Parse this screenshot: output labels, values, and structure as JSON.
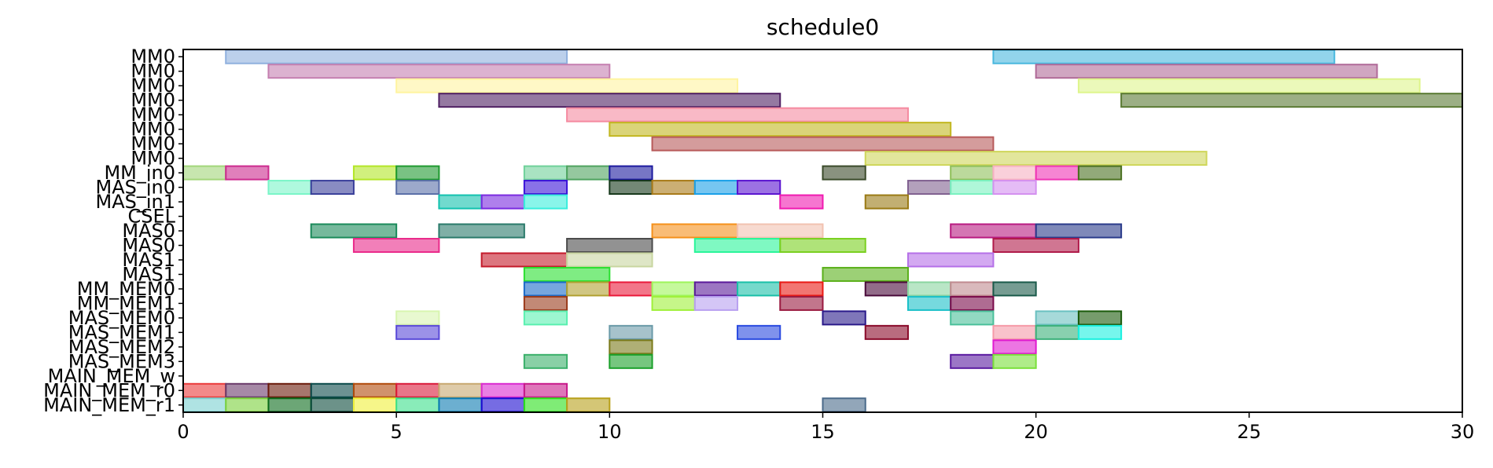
{
  "chart_data": {
    "type": "gantt",
    "title": "schedule0",
    "xlim": [
      0,
      30
    ],
    "xticks": [
      "0",
      "5",
      "10",
      "15",
      "20",
      "25",
      "30"
    ],
    "xtick_values": [
      0,
      5,
      10,
      15,
      20,
      25,
      30
    ],
    "grid": false,
    "rows": [
      "MM0",
      "MM0",
      "MM0",
      "MM0",
      "MM0",
      "MM0",
      "MM0",
      "MM0",
      "MM_in0",
      "MAS_in0",
      "MAS_in1",
      "CSEL",
      "MAS0",
      "MAS0",
      "MAS1",
      "MAS1",
      "MM_MEM0",
      "MM_MEM1",
      "MAS_MEM0",
      "MAS_MEM1",
      "MAS_MEM2",
      "MAS_MEM3",
      "MAIN_MEM_w",
      "MAIN_MEM_r0",
      "MAIN_MEM_r1"
    ],
    "tasks": [
      {
        "row": 0,
        "start": 1,
        "end": 9,
        "color": "#8fb0de"
      },
      {
        "row": 0,
        "start": 19,
        "end": 27,
        "color": "#49b8de"
      },
      {
        "row": 1,
        "start": 2,
        "end": 10,
        "color": "#c57fb0"
      },
      {
        "row": 1,
        "start": 20,
        "end": 28,
        "color": "#b06a98"
      },
      {
        "row": 2,
        "start": 5,
        "end": 13,
        "color": "#fff4a0"
      },
      {
        "row": 2,
        "start": 21,
        "end": 29,
        "color": "#def58c"
      },
      {
        "row": 3,
        "start": 6,
        "end": 14,
        "color": "#4f2063"
      },
      {
        "row": 3,
        "start": 22,
        "end": 30,
        "color": "#5a7a33"
      },
      {
        "row": 4,
        "start": 9,
        "end": 17,
        "color": "#f58aa0"
      },
      {
        "row": 5,
        "start": 10,
        "end": 18,
        "color": "#c2b720"
      },
      {
        "row": 6,
        "start": 11,
        "end": 19,
        "color": "#b75a5a"
      },
      {
        "row": 7,
        "start": 16,
        "end": 24,
        "color": "#cfd65a"
      },
      {
        "row": 8,
        "start": 0,
        "end": 1,
        "color": "#a2d67a"
      },
      {
        "row": 8,
        "start": 1,
        "end": 2,
        "color": "#cc2a8e"
      },
      {
        "row": 8,
        "start": 4,
        "end": 5,
        "color": "#b3e627"
      },
      {
        "row": 8,
        "start": 5,
        "end": 6,
        "color": "#1f9a30"
      },
      {
        "row": 8,
        "start": 8,
        "end": 9,
        "color": "#6fd19a"
      },
      {
        "row": 8,
        "start": 9,
        "end": 10,
        "color": "#4fa35f"
      },
      {
        "row": 8,
        "start": 10,
        "end": 11,
        "color": "#1d1a9e"
      },
      {
        "row": 8,
        "start": 15,
        "end": 16,
        "color": "#3a4a2a"
      },
      {
        "row": 8,
        "start": 18,
        "end": 19,
        "color": "#8fc05a"
      },
      {
        "row": 8,
        "start": 19,
        "end": 20,
        "color": "#f7b0c2"
      },
      {
        "row": 8,
        "start": 20,
        "end": 21,
        "color": "#f033b5"
      },
      {
        "row": 8,
        "start": 21,
        "end": 22,
        "color": "#4a7020"
      },
      {
        "row": 9,
        "start": 2,
        "end": 3,
        "color": "#7af5c8"
      },
      {
        "row": 9,
        "start": 3,
        "end": 4,
        "color": "#3a3f9a"
      },
      {
        "row": 9,
        "start": 5,
        "end": 6,
        "color": "#5a6fa8"
      },
      {
        "row": 9,
        "start": 8,
        "end": 9,
        "color": "#3a12d9"
      },
      {
        "row": 9,
        "start": 10,
        "end": 11,
        "color": "#16381b"
      },
      {
        "row": 9,
        "start": 11,
        "end": 12,
        "color": "#a87a18"
      },
      {
        "row": 9,
        "start": 12,
        "end": 13,
        "color": "#1aa0e8"
      },
      {
        "row": 9,
        "start": 13,
        "end": 14,
        "color": "#5a14d0"
      },
      {
        "row": 9,
        "start": 17,
        "end": 18,
        "color": "#806090"
      },
      {
        "row": 9,
        "start": 18,
        "end": 19,
        "color": "#7af2c0"
      },
      {
        "row": 9,
        "start": 19,
        "end": 20,
        "color": "#d490f0"
      },
      {
        "row": 10,
        "start": 6,
        "end": 7,
        "color": "#12c2ae"
      },
      {
        "row": 10,
        "start": 7,
        "end": 8,
        "color": "#7a2ae0"
      },
      {
        "row": 10,
        "start": 8,
        "end": 9,
        "color": "#3aeedc"
      },
      {
        "row": 10,
        "start": 14,
        "end": 15,
        "color": "#f01ab0"
      },
      {
        "row": 10,
        "start": 16,
        "end": 17,
        "color": "#9a7a14"
      },
      {
        "row": 12,
        "start": 3,
        "end": 5,
        "color": "#1a8a5a"
      },
      {
        "row": 12,
        "start": 6,
        "end": 8,
        "color": "#2a7a6a"
      },
      {
        "row": 12,
        "start": 11,
        "end": 13,
        "color": "#f5901a"
      },
      {
        "row": 12,
        "start": 13,
        "end": 15,
        "color": "#f2c2b0"
      },
      {
        "row": 12,
        "start": 18,
        "end": 20,
        "color": "#b81a80"
      },
      {
        "row": 12,
        "start": 20,
        "end": 22,
        "color": "#2a3a8a"
      },
      {
        "row": 13,
        "start": 4,
        "end": 6,
        "color": "#ea2a8a"
      },
      {
        "row": 13,
        "start": 9,
        "end": 11,
        "color": "#4a4a4a"
      },
      {
        "row": 13,
        "start": 12,
        "end": 14,
        "color": "#2af59a"
      },
      {
        "row": 13,
        "start": 14,
        "end": 16,
        "color": "#7ad020"
      },
      {
        "row": 13,
        "start": 19,
        "end": 21,
        "color": "#b01a4a"
      },
      {
        "row": 14,
        "start": 7,
        "end": 9,
        "color": "#c41a2a"
      },
      {
        "row": 14,
        "start": 9,
        "end": 11,
        "color": "#c8d6a0"
      },
      {
        "row": 14,
        "start": 17,
        "end": 19,
        "color": "#b570e8"
      },
      {
        "row": 15,
        "start": 8,
        "end": 10,
        "color": "#2ae030"
      },
      {
        "row": 15,
        "start": 15,
        "end": 17,
        "color": "#5ab01a"
      },
      {
        "row": 16,
        "start": 8,
        "end": 9,
        "color": "#1a6ac8"
      },
      {
        "row": 16,
        "start": 9,
        "end": 10,
        "color": "#b0a030"
      },
      {
        "row": 16,
        "start": 10,
        "end": 11,
        "color": "#ea1a3a"
      },
      {
        "row": 16,
        "start": 11,
        "end": 12,
        "color": "#9ef55a"
      },
      {
        "row": 16,
        "start": 12,
        "end": 13,
        "color": "#5a1a9a"
      },
      {
        "row": 16,
        "start": 13,
        "end": 14,
        "color": "#1ac0a8"
      },
      {
        "row": 16,
        "start": 14,
        "end": 15,
        "color": "#ea1a14"
      },
      {
        "row": 16,
        "start": 16,
        "end": 17,
        "color": "#4a0a3a"
      },
      {
        "row": 16,
        "start": 17,
        "end": 18,
        "color": "#8ad5a0"
      },
      {
        "row": 16,
        "start": 18,
        "end": 19,
        "color": "#c08a90"
      },
      {
        "row": 16,
        "start": 19,
        "end": 20,
        "color": "#1a5a4a"
      },
      {
        "row": 17,
        "start": 8,
        "end": 9,
        "color": "#9a3a1a"
      },
      {
        "row": 17,
        "start": 11,
        "end": 12,
        "color": "#a0f03a"
      },
      {
        "row": 17,
        "start": 12,
        "end": 13,
        "color": "#b8a0f0"
      },
      {
        "row": 17,
        "start": 14,
        "end": 15,
        "color": "#9a1a40"
      },
      {
        "row": 17,
        "start": 17,
        "end": 18,
        "color": "#1ac0c8"
      },
      {
        "row": 17,
        "start": 18,
        "end": 19,
        "color": "#7a0a4a"
      },
      {
        "row": 18,
        "start": 5,
        "end": 6,
        "color": "#d8f5b0"
      },
      {
        "row": 18,
        "start": 8,
        "end": 9,
        "color": "#5af0b0"
      },
      {
        "row": 18,
        "start": 15,
        "end": 16,
        "color": "#2a1a8a"
      },
      {
        "row": 18,
        "start": 18,
        "end": 19,
        "color": "#4ac09a"
      },
      {
        "row": 18,
        "start": 20,
        "end": 21,
        "color": "#6ac0c0"
      },
      {
        "row": 18,
        "start": 21,
        "end": 22,
        "color": "#1a5a0a"
      },
      {
        "row": 19,
        "start": 5,
        "end": 6,
        "color": "#5a4ad8"
      },
      {
        "row": 19,
        "start": 10,
        "end": 11,
        "color": "#6a9aa8"
      },
      {
        "row": 19,
        "start": 13,
        "end": 14,
        "color": "#2a4ae0"
      },
      {
        "row": 19,
        "start": 16,
        "end": 17,
        "color": "#8a0a2a"
      },
      {
        "row": 19,
        "start": 19,
        "end": 20,
        "color": "#f59aa8"
      },
      {
        "row": 19,
        "start": 20,
        "end": 21,
        "color": "#3ab07a"
      },
      {
        "row": 19,
        "start": 21,
        "end": 22,
        "color": "#1af0e0"
      },
      {
        "row": 20,
        "start": 10,
        "end": 11,
        "color": "#7a7a1a"
      },
      {
        "row": 20,
        "start": 19,
        "end": 20,
        "color": "#e01ad0"
      },
      {
        "row": 21,
        "start": 8,
        "end": 9,
        "color": "#3ab06a"
      },
      {
        "row": 21,
        "start": 10,
        "end": 11,
        "color": "#1aa02a"
      },
      {
        "row": 21,
        "start": 18,
        "end": 19,
        "color": "#5a1aa0"
      },
      {
        "row": 21,
        "start": 19,
        "end": 20,
        "color": "#7ae03a"
      },
      {
        "row": 23,
        "start": 0,
        "end": 1,
        "color": "#ea3a3a"
      },
      {
        "row": 23,
        "start": 1,
        "end": 2,
        "color": "#6a3a6a"
      },
      {
        "row": 23,
        "start": 2,
        "end": 3,
        "color": "#6a1a0a"
      },
      {
        "row": 23,
        "start": 3,
        "end": 4,
        "color": "#0a4a4a"
      },
      {
        "row": 23,
        "start": 4,
        "end": 5,
        "color": "#b04a0a"
      },
      {
        "row": 23,
        "start": 5,
        "end": 6,
        "color": "#da1a3a"
      },
      {
        "row": 23,
        "start": 6,
        "end": 7,
        "color": "#c8a870"
      },
      {
        "row": 23,
        "start": 7,
        "end": 8,
        "color": "#da2ad0"
      },
      {
        "row": 23,
        "start": 8,
        "end": 9,
        "color": "#c81a8a"
      },
      {
        "row": 24,
        "start": 0,
        "end": 1,
        "color": "#7ad0d0"
      },
      {
        "row": 24,
        "start": 1,
        "end": 2,
        "color": "#7ad03a"
      },
      {
        "row": 24,
        "start": 2,
        "end": 3,
        "color": "#0a6a1a"
      },
      {
        "row": 24,
        "start": 3,
        "end": 4,
        "color": "#0a4a3a"
      },
      {
        "row": 24,
        "start": 4,
        "end": 5,
        "color": "#f0f03a"
      },
      {
        "row": 24,
        "start": 5,
        "end": 6,
        "color": "#3ae08a"
      },
      {
        "row": 24,
        "start": 6,
        "end": 7,
        "color": "#0a7ab0"
      },
      {
        "row": 24,
        "start": 7,
        "end": 8,
        "color": "#1a0ad0"
      },
      {
        "row": 24,
        "start": 8,
        "end": 9,
        "color": "#2ae01a"
      },
      {
        "row": 24,
        "start": 9,
        "end": 10,
        "color": "#b8a01a"
      },
      {
        "row": 24,
        "start": 15,
        "end": 16,
        "color": "#4a6a8a"
      }
    ]
  }
}
